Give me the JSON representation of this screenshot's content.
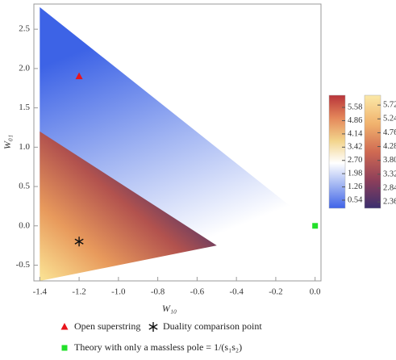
{
  "chart_data": {
    "type": "scatter",
    "x_label": "W₁₀",
    "y_label": "W₀₁",
    "xlim": [
      -1.43,
      0.03
    ],
    "ylim": [
      -0.7,
      2.82
    ],
    "xticks": [
      -1.4,
      -1.2,
      {
        "value": -1,
        "label": "-1.0"
      },
      -0.8,
      -0.6,
      -0.4,
      -0.2,
      {
        "value": 0,
        "label": "0.0"
      }
    ],
    "yticks": [
      -0.5,
      {
        "value": 0,
        "label": "0.0"
      },
      0.5,
      {
        "value": 1,
        "label": "1.0"
      },
      1.5,
      {
        "value": 2,
        "label": "2.0"
      },
      2.5
    ],
    "regions": [
      {
        "x": [
          -1.4,
          0,
          -1.4
        ],
        "y": [
          2.78,
          0,
          -0.7
        ],
        "colors": [
          "#ffffff",
          "#9fb3f2",
          "#3d63e6"
        ]
      },
      {
        "x": [
          -1.4,
          -0.5,
          -1.4
        ],
        "y": [
          1.2,
          -0.25,
          -0.7
        ],
        "colors": [
          "#fbe596",
          "#e89a5c",
          "#b2524e",
          "#3a2f6e"
        ]
      }
    ],
    "series": [
      {
        "name": "Open superstring",
        "color": "#e8141c",
        "marker": "triangle",
        "x": [
          -1.2
        ],
        "values": [
          1.9
        ]
      },
      {
        "name": "Duality comparison point",
        "color": "#111111",
        "marker": "star",
        "x": [
          -1.2
        ],
        "values": [
          -0.2
        ]
      },
      {
        "name": "Theory with only a massless pole = 1/(s₁s₂)",
        "color": "#22e02a",
        "marker": "square",
        "x": [
          0
        ],
        "values": [
          0
        ]
      }
    ],
    "colorbars": [
      {
        "lim": [
          0.1,
          6.24
        ],
        "colors": [
          "#3f63e8",
          "#9fb3f2",
          "#ffffff",
          "#f2d38a",
          "#e4875a",
          "#b8343a"
        ],
        "ticks": [
          0.54,
          1.26,
          1.98,
          {
            "value": 2.7,
            "label": "2.70"
          },
          3.42,
          4.14,
          4.86,
          5.58
        ]
      },
      {
        "lim": [
          2.14,
          6.06
        ],
        "colors": [
          "#3b2f6e",
          "#8e3f5a",
          "#d06a52",
          "#f1b36e",
          "#fbe9a8"
        ],
        "ticks": [
          2.36,
          2.84,
          3.32,
          {
            "value": 3.8,
            "label": "3.80"
          },
          4.28,
          4.76,
          5.24,
          5.72
        ]
      }
    ]
  }
}
